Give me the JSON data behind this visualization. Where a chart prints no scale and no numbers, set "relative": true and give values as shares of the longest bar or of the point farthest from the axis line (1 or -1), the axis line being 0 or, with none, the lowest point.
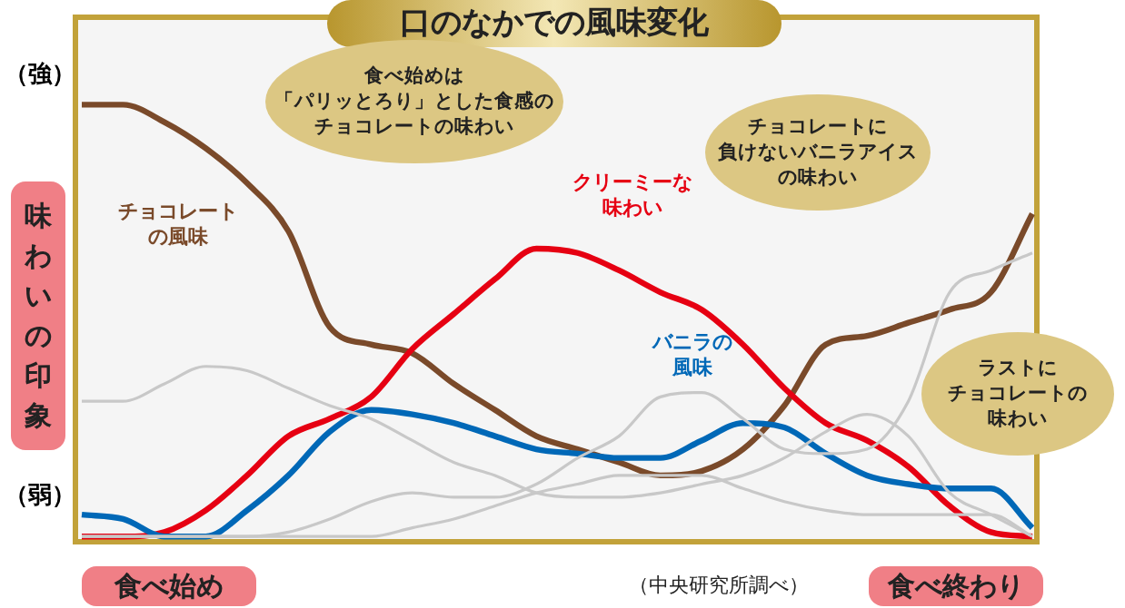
{
  "chart_data": {
    "type": "line",
    "title": "口のなかでの風味変化",
    "ylabel": "味わいの印象",
    "relative": true,
    "grid": false,
    "legend": false,
    "marker": "none",
    "line_style": "solid",
    "categories": [
      null,
      null,
      null,
      null,
      null,
      null,
      null,
      null,
      null,
      null,
      null,
      null,
      null,
      null,
      null,
      null,
      null,
      null,
      null,
      null,
      null,
      null,
      null,
      null
    ],
    "series": [
      {
        "color": "#c8c8c8",
        "values": [
          0.32,
          0.32,
          0.36,
          0.4,
          0.39,
          0.35,
          0.31,
          0.28,
          0.23,
          0.18,
          0.15,
          0.11,
          0.1,
          0.1,
          0.11,
          0.13,
          0.15,
          0.19,
          0.25,
          0.29,
          0.24,
          0.11,
          0.06,
          0.01
        ]
      },
      {
        "color": "#c8c8c8",
        "values": [
          0.01,
          0.01,
          0.01,
          0.01,
          0.01,
          0.02,
          0.05,
          0.09,
          0.11,
          0.1,
          0.1,
          0.13,
          0.19,
          0.24,
          0.33,
          0.34,
          0.28,
          0.21,
          0.2,
          0.21,
          0.32,
          0.57,
          0.62,
          0.66
        ]
      },
      {
        "color": "#c8c8c8",
        "values": [
          0.01,
          0.01,
          0.01,
          0.01,
          0.01,
          0.01,
          0.01,
          0.01,
          0.03,
          0.05,
          0.08,
          0.11,
          0.13,
          0.15,
          0.15,
          0.15,
          0.12,
          0.09,
          0.07,
          0.06,
          0.06,
          0.06,
          0.06,
          0.01
        ]
      },
      {
        "name": "バニラの風味",
        "color": "#0068b7",
        "values": [
          0.06,
          0.05,
          0.01,
          0.01,
          0.07,
          0.15,
          0.25,
          0.3,
          0.29,
          0.27,
          0.24,
          0.21,
          0.2,
          0.19,
          0.19,
          0.23,
          0.27,
          0.26,
          0.2,
          0.15,
          0.13,
          0.12,
          0.12,
          0.03
        ]
      },
      {
        "name": "クリーミーな味わい",
        "color": "#e60012",
        "values": [
          0.01,
          0.01,
          0.02,
          0.07,
          0.15,
          0.24,
          0.28,
          0.33,
          0.44,
          0.52,
          0.6,
          0.67,
          0.66,
          0.62,
          0.57,
          0.53,
          0.45,
          0.35,
          0.27,
          0.23,
          0.17,
          0.08,
          0.02,
          0.01
        ]
      },
      {
        "name": "チョコレートの風味",
        "color": "#7a4a2a",
        "values": [
          1.0,
          1.0,
          0.96,
          0.9,
          0.82,
          0.71,
          0.49,
          0.45,
          0.43,
          0.36,
          0.3,
          0.24,
          0.21,
          0.18,
          0.15,
          0.16,
          0.21,
          0.31,
          0.45,
          0.47,
          0.5,
          0.53,
          0.57,
          0.75
        ]
      }
    ],
    "annotations": [
      "（強）",
      "（弱）",
      "食べ始め",
      "食べ終わり",
      "（中央研究所調べ）",
      "食べ始めは「パリッとろり」とした食感のチョコレートの味わい",
      "チョコレートに負けないバニラアイスの味わい",
      "ラストにチョコレートの味わい"
    ]
  }
}
